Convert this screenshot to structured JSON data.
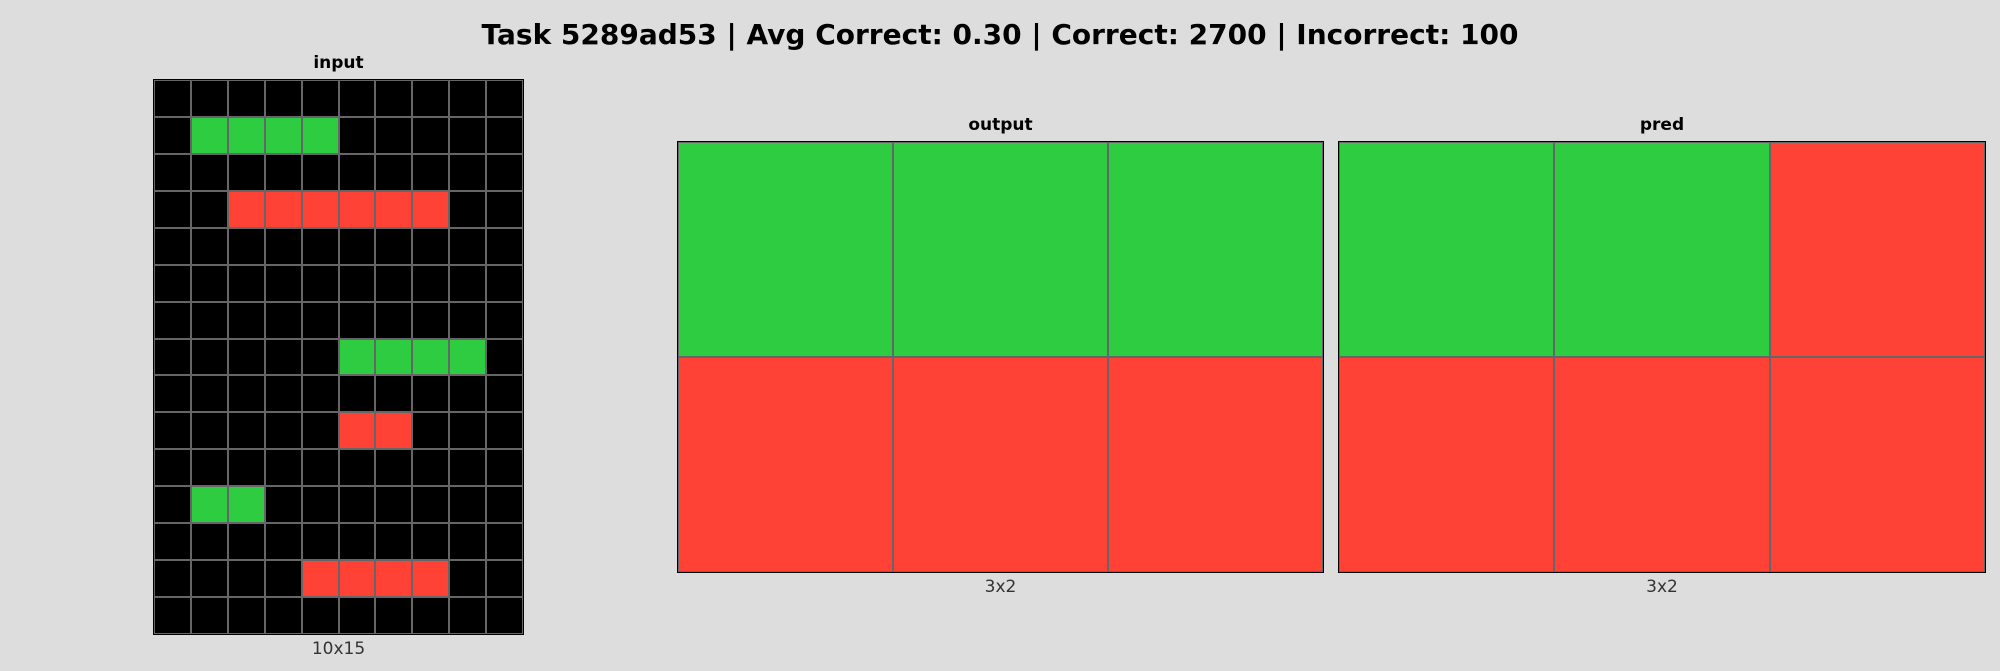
{
  "header": {
    "title": "Task 5289ad53 | Avg Correct: 0.30 | Correct: 2700 | Incorrect: 100"
  },
  "palette": {
    "0": "#000000",
    "2": "#ff4136",
    "3": "#2ecc40"
  },
  "panels": {
    "input": {
      "label": "input",
      "dims": "10x15",
      "rows": [
        [
          0,
          0,
          0,
          0,
          0,
          0,
          0,
          0,
          0,
          0
        ],
        [
          0,
          3,
          3,
          3,
          3,
          0,
          0,
          0,
          0,
          0
        ],
        [
          0,
          0,
          0,
          0,
          0,
          0,
          0,
          0,
          0,
          0
        ],
        [
          0,
          0,
          2,
          2,
          2,
          2,
          2,
          2,
          0,
          0
        ],
        [
          0,
          0,
          0,
          0,
          0,
          0,
          0,
          0,
          0,
          0
        ],
        [
          0,
          0,
          0,
          0,
          0,
          0,
          0,
          0,
          0,
          0
        ],
        [
          0,
          0,
          0,
          0,
          0,
          0,
          0,
          0,
          0,
          0
        ],
        [
          0,
          0,
          0,
          0,
          0,
          3,
          3,
          3,
          3,
          0
        ],
        [
          0,
          0,
          0,
          0,
          0,
          0,
          0,
          0,
          0,
          0
        ],
        [
          0,
          0,
          0,
          0,
          0,
          2,
          2,
          0,
          0,
          0
        ],
        [
          0,
          0,
          0,
          0,
          0,
          0,
          0,
          0,
          0,
          0
        ],
        [
          0,
          3,
          3,
          0,
          0,
          0,
          0,
          0,
          0,
          0
        ],
        [
          0,
          0,
          0,
          0,
          0,
          0,
          0,
          0,
          0,
          0
        ],
        [
          0,
          0,
          0,
          0,
          2,
          2,
          2,
          2,
          0,
          0
        ],
        [
          0,
          0,
          0,
          0,
          0,
          0,
          0,
          0,
          0,
          0
        ]
      ]
    },
    "output": {
      "label": "output",
      "dims": "3x2",
      "rows": [
        [
          3,
          3,
          3
        ],
        [
          2,
          2,
          2
        ]
      ]
    },
    "pred": {
      "label": "pred",
      "dims": "3x2",
      "rows": [
        [
          3,
          3,
          2
        ],
        [
          2,
          2,
          2
        ]
      ]
    }
  }
}
